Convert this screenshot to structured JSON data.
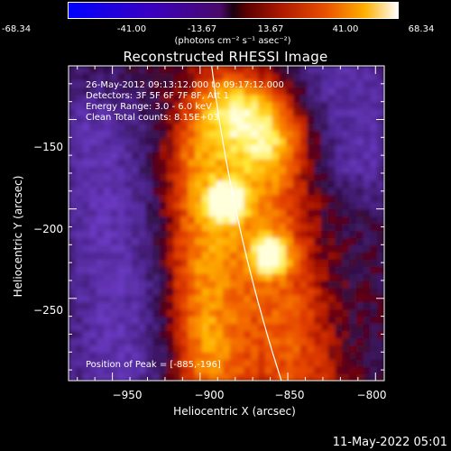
{
  "colorbar": {
    "ticks": [
      "-68.34",
      "-41.00",
      "-13.67",
      "13.67",
      "41.00",
      "68.34"
    ],
    "unit": "(photons cm⁻² s⁻¹ asec⁻²)"
  },
  "chart_data": {
    "type": "heatmap",
    "title": "Reconstructed RHESSI Image",
    "xlabel": "Heliocentric X (arcsec)",
    "ylabel": "Heliocentric Y (arcsec)",
    "xlim": [
      -975,
      -795
    ],
    "ylim": [
      -296,
      -120
    ],
    "xticks": [
      -950,
      -900,
      -850,
      -800
    ],
    "yticks": [
      -150,
      -200,
      -250
    ],
    "xtick_labels": [
      "−950",
      "−900",
      "−850",
      "−800"
    ],
    "ytick_labels": [
      "−150",
      "−200",
      "−250"
    ],
    "colorbar_range": [
      -68.34,
      68.34
    ],
    "annotations": [
      "26-May-2012 09:13:12.000 to 09:17:12.000",
      "Detectors: 3F 5F 6F 7F 8F, Att 1",
      "Energy Range: 3.0 - 6.0 keV",
      "Clean    Total counts: 8.15E+03"
    ],
    "peak_label": "Position of Peak = [-885,-196]",
    "peaks": [
      {
        "x": -885,
        "y": -196,
        "rel": 1.0
      },
      {
        "x": -860,
        "y": -226,
        "rel": 0.8
      }
    ]
  },
  "timestamp": "11-May-2022 05:01"
}
